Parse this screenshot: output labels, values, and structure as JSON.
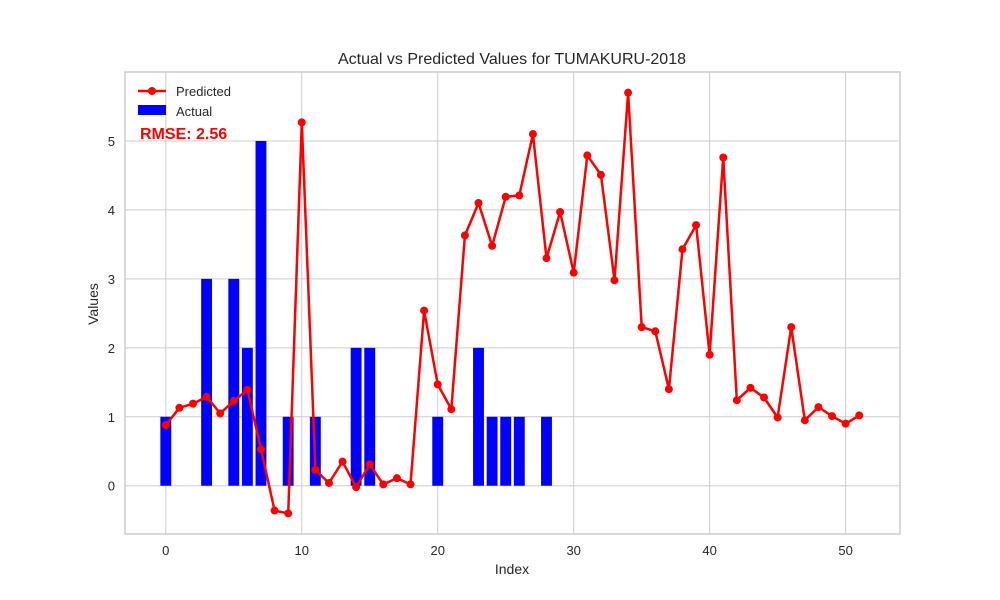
{
  "chart_data": {
    "type": "bar+line",
    "title": "Actual vs Predicted Values for TUMAKURU-2018",
    "xlabel": "Index",
    "ylabel": "Values",
    "xlim": [
      -3,
      54
    ],
    "ylim": [
      -0.7,
      6.0
    ],
    "xticks": [
      0,
      10,
      20,
      30,
      40,
      50
    ],
    "yticks": [
      0,
      1,
      2,
      3,
      4,
      5
    ],
    "grid": true,
    "legend_position": "top-left",
    "annotation": "RMSE: 2.56",
    "actual": {
      "name": "Actual",
      "color": "#0000ff",
      "x": [
        0,
        1,
        2,
        3,
        4,
        5,
        6,
        7,
        8,
        9,
        10,
        11,
        12,
        13,
        14,
        15,
        16,
        17,
        18,
        19,
        20,
        21,
        22,
        23,
        24,
        25,
        26,
        27,
        28
      ],
      "values": [
        1,
        0,
        0,
        3,
        0,
        3,
        2,
        5,
        0,
        1,
        0,
        1,
        0,
        0,
        2,
        2,
        0,
        0,
        0,
        0,
        1,
        0,
        0,
        2,
        1,
        1,
        1,
        0,
        1
      ]
    },
    "predicted": {
      "name": "Predicted",
      "color": "#ff0000",
      "x": [
        0,
        1,
        2,
        3,
        4,
        5,
        6,
        7,
        8,
        9,
        10,
        11,
        12,
        13,
        14,
        15,
        16,
        17,
        18,
        19,
        20,
        21,
        22,
        23,
        24,
        25,
        26,
        27,
        28,
        29,
        30,
        31,
        32,
        33,
        34,
        35,
        36,
        37,
        38,
        39,
        40,
        41,
        42,
        43,
        44,
        45,
        46,
        47,
        48,
        49,
        50,
        51
      ],
      "values": [
        0.88,
        1.13,
        1.19,
        1.29,
        1.05,
        1.23,
        1.39,
        0.53,
        -0.36,
        -0.4,
        5.27,
        0.23,
        0.04,
        0.35,
        -0.02,
        0.31,
        0.02,
        0.11,
        0.02,
        2.54,
        1.47,
        1.11,
        3.63,
        4.1,
        3.48,
        4.19,
        4.21,
        5.1,
        3.3,
        3.97,
        3.09,
        4.79,
        4.51,
        2.98,
        5.7,
        2.3,
        2.24,
        1.4,
        3.43,
        3.78,
        1.9,
        4.76,
        1.24,
        1.42,
        1.28,
        0.99,
        2.3,
        0.95,
        1.14,
        1.01,
        0.9,
        1.02
      ]
    }
  }
}
